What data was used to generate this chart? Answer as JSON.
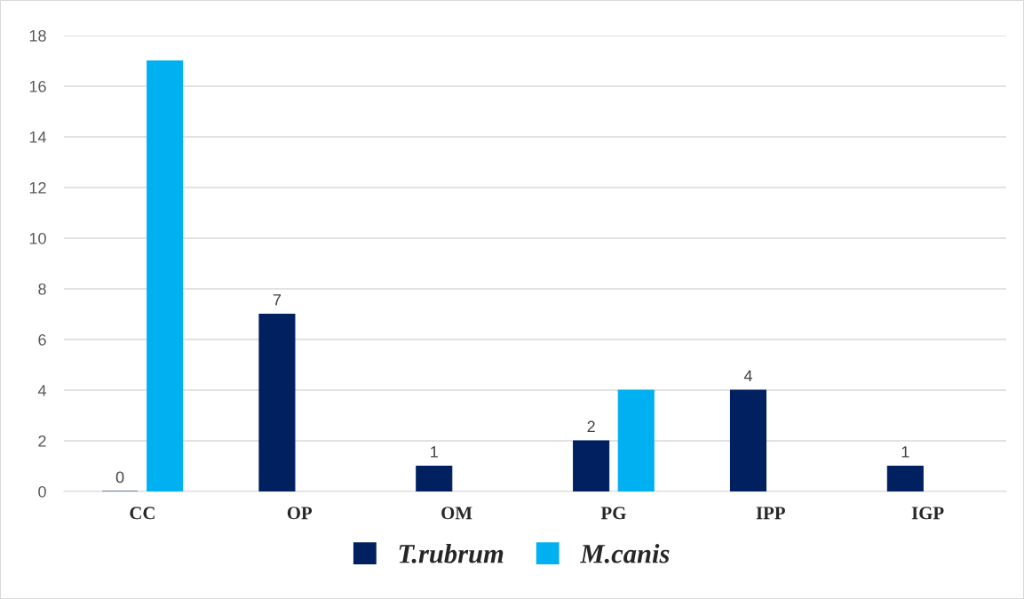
{
  "chart_data": {
    "type": "bar",
    "categories": [
      "CC",
      "OP",
      "OM",
      "PG",
      "IPP",
      "IGP"
    ],
    "series": [
      {
        "name": "T.rubrum",
        "color": "#002060",
        "values": [
          0,
          7,
          1,
          2,
          4,
          1
        ],
        "value_labels": [
          "0",
          "7",
          "1",
          "2",
          "4",
          "1"
        ]
      },
      {
        "name": "M.canis",
        "color": "#00b0f0",
        "values": [
          17,
          null,
          null,
          4,
          null,
          null
        ]
      }
    ],
    "ylim": [
      0,
      18
    ],
    "yticks": [
      0,
      2,
      4,
      6,
      8,
      10,
      12,
      14,
      16,
      18
    ],
    "grid": "y",
    "legend": "bottom"
  }
}
